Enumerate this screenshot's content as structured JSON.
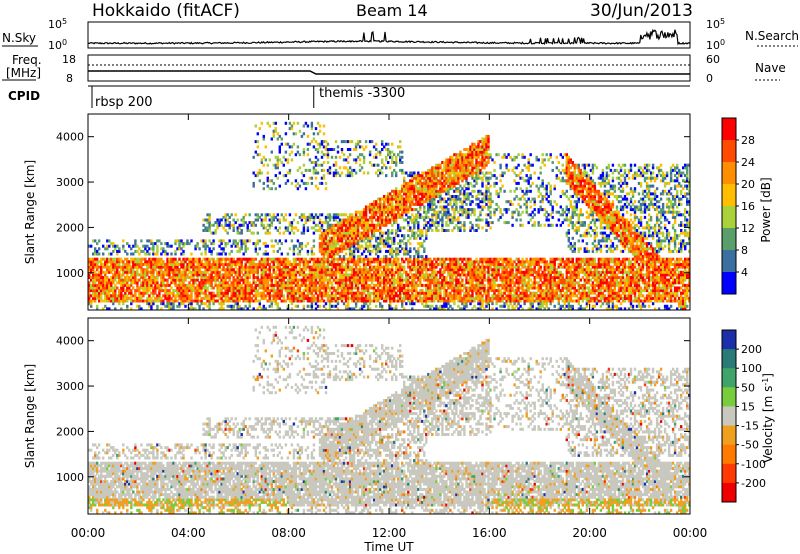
{
  "header": {
    "station": "Hokkaido (fitACF)",
    "beam": "Beam 14",
    "date": "30/Jun/2013"
  },
  "noise_panel": {
    "left_label": "N.Sky",
    "right_label": "N.Search",
    "left_ticks": [
      "10^5",
      "10^0"
    ],
    "right_ticks": [
      "10^5",
      "10^0"
    ]
  },
  "freq_panel": {
    "left_label_1": "Freq.",
    "left_label_2": "[MHz]",
    "left_ticks": [
      "18",
      "8"
    ],
    "right_label": "Nave",
    "right_ticks": [
      "60",
      "0"
    ]
  },
  "cpid_panel": {
    "label": "CPID",
    "segments": [
      {
        "start_hour": 0,
        "name": "rbsp 200"
      },
      {
        "start_hour": 9.0,
        "name": "themis -3300"
      }
    ]
  },
  "chart_data": [
    {
      "type": "heatmap",
      "panel": "power",
      "ylabel": "Slant Range [km]",
      "xlabel": "",
      "x_range_hours": [
        0,
        24
      ],
      "ylim": [
        180,
        4500
      ],
      "y_ticks": [
        1000,
        2000,
        3000,
        4000
      ],
      "colorbar_label": "Power [dB]",
      "colorbar_ticks": [
        "28",
        "24",
        "20",
        "16",
        "12",
        "8",
        "4"
      ],
      "colorbar_colors": [
        "#ff0000",
        "#ff4a00",
        "#ff8f00",
        "#ffbf00",
        "#a9d23a",
        "#5a9e6c",
        "#3a6fa0",
        "#0000ff"
      ],
      "features": [
        {
          "desc": "strong backscatter band",
          "hours": [
            0,
            24
          ],
          "range_km": [
            350,
            1300
          ]
        },
        {
          "desc": "rising echo arc",
          "hours": [
            9.2,
            16.0
          ],
          "range_km": [
            1500,
            3700
          ]
        },
        {
          "desc": "descending echo arc",
          "hours": [
            19.0,
            23.8
          ],
          "range_km": [
            400,
            3300
          ]
        }
      ]
    },
    {
      "type": "heatmap",
      "panel": "velocity",
      "ylabel": "Slant Range [km]",
      "xlabel": "Time UT",
      "x_tick_labels": [
        "00:00",
        "04:00",
        "08:00",
        "12:00",
        "16:00",
        "20:00",
        "00:00"
      ],
      "x_ticks_hours": [
        0,
        4,
        8,
        12,
        16,
        20,
        24
      ],
      "ylim": [
        180,
        4500
      ],
      "y_ticks": [
        1000,
        2000,
        3000,
        4000
      ],
      "colorbar_label": "Velocity [m s^-1]",
      "colorbar_ticks": [
        "200",
        "100",
        "50",
        "15",
        "-15",
        "-50",
        "-100",
        "-200"
      ],
      "colorbar_colors": [
        "#1a2fa8",
        "#2a7a78",
        "#3fa36a",
        "#79cc3c",
        "#c8c8bf",
        "#f0a020",
        "#ff7a00",
        "#ff3a00",
        "#ee0000"
      ]
    }
  ]
}
